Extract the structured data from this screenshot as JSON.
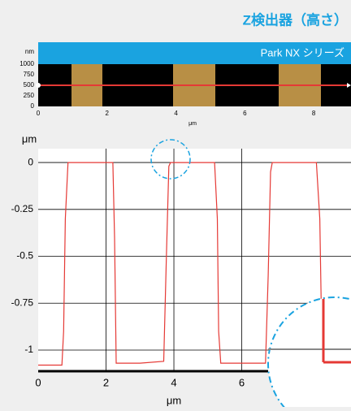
{
  "header": {
    "title": "Z検出器（高さ）",
    "banner": "Park NX シリーズ"
  },
  "height_map": {
    "unit": "nm",
    "yticks": [
      1000,
      750,
      500,
      250,
      0
    ],
    "ylim": [
      0,
      1000
    ],
    "xticks": [
      0,
      2,
      4,
      6,
      8
    ],
    "xlim": [
      0,
      9.2
    ],
    "xlabel": "μm"
  },
  "chart_data": {
    "type": "line",
    "ylabel": "μm",
    "xlabel": "μm",
    "color": "#e53935",
    "grid": true,
    "x": [
      0,
      0.7,
      0.75,
      0.8,
      0.88,
      1.5,
      2.1,
      2.2,
      2.25,
      2.3,
      2.5,
      3.0,
      3.7,
      3.78,
      3.85,
      3.9,
      4.5,
      5.2,
      5.28,
      5.32,
      5.38,
      6.0,
      6.7,
      6.78,
      6.85,
      6.9,
      7.5,
      8.2,
      8.3,
      8.35,
      8.45
    ],
    "values": [
      -1.08,
      -1.08,
      -0.9,
      -0.3,
      0,
      0,
      0,
      0,
      -0.4,
      -1.07,
      -1.07,
      -1.07,
      -1.06,
      -0.5,
      -0.02,
      0,
      0,
      0,
      -0.3,
      -0.9,
      -1.07,
      -1.07,
      -1.07,
      -0.6,
      -0.05,
      0,
      0,
      0,
      -0.3,
      -0.85,
      -1.07
    ],
    "xlim": [
      0,
      9.22
    ],
    "ylim": [
      -1.117,
      0.074
    ],
    "xticks": [
      0,
      2,
      4,
      6
    ],
    "yticks": [
      0,
      -0.25,
      -0.5,
      -0.75,
      -1
    ]
  }
}
